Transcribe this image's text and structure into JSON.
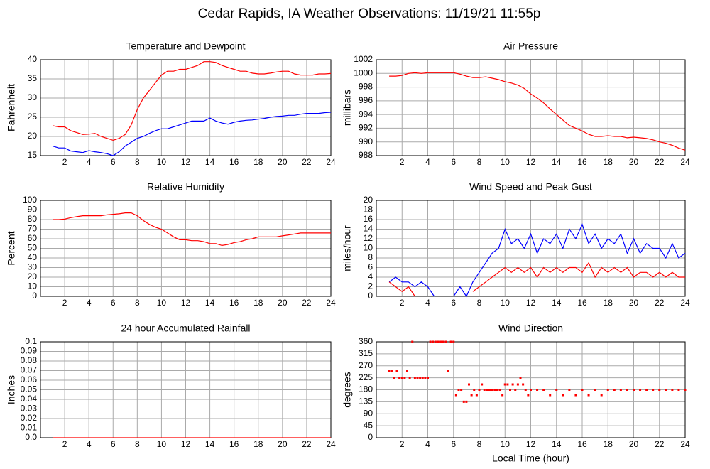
{
  "title": "Cedar Rapids, IA Weather Observations: 11/19/21 11:55p",
  "chart_data": [
    {
      "type": "line",
      "title": "Temperature and Dewpoint",
      "ylabel": "Fahrenheit",
      "grid": true,
      "xlim": [
        0,
        24
      ],
      "xticks": [
        2,
        4,
        6,
        8,
        10,
        12,
        14,
        16,
        18,
        20,
        22,
        24
      ],
      "ylim": [
        15,
        40
      ],
      "yticks": [
        15,
        20,
        25,
        30,
        35,
        40
      ],
      "x": [
        1,
        1.5,
        2,
        2.5,
        3,
        3.5,
        4,
        4.5,
        5,
        5.5,
        6,
        6.5,
        7,
        7.5,
        8,
        8.5,
        9,
        9.5,
        10,
        10.5,
        11,
        11.5,
        12,
        12.5,
        13,
        13.5,
        14,
        14.5,
        15,
        15.5,
        16,
        16.5,
        17,
        17.5,
        18,
        18.5,
        19,
        19.5,
        20,
        20.5,
        21,
        21.5,
        22,
        22.5,
        23,
        23.5,
        24
      ],
      "series": [
        {
          "color": "#ff0000",
          "values": [
            22.8,
            22.5,
            22.5,
            21.5,
            21,
            20.5,
            20.6,
            20.8,
            20,
            19.5,
            19,
            19.5,
            20.5,
            23,
            27,
            30,
            32,
            34,
            36,
            37,
            37,
            37.5,
            37.5,
            38,
            38.5,
            39.5,
            39.5,
            39.3,
            38.5,
            38,
            37.5,
            37,
            37,
            36.5,
            36.3,
            36.3,
            36.5,
            36.8,
            37,
            37,
            36.3,
            36,
            36,
            36,
            36.3,
            36.3,
            36.4
          ]
        },
        {
          "color": "#0000ff",
          "values": [
            17.5,
            17,
            17,
            16.2,
            16,
            15.8,
            16.3,
            16,
            15.8,
            15.5,
            15,
            16,
            17.5,
            18.5,
            19.5,
            20,
            20.8,
            21.5,
            22,
            22,
            22.5,
            23,
            23.5,
            24,
            24,
            24,
            24.8,
            24,
            23.5,
            23.2,
            23.7,
            24,
            24.2,
            24.3,
            24.5,
            24.7,
            25,
            25.2,
            25.3,
            25.5,
            25.5,
            25.8,
            26,
            26,
            26,
            26.2,
            26.3
          ]
        }
      ]
    },
    {
      "type": "line",
      "title": "Air Pressure",
      "ylabel": "millibars",
      "grid": true,
      "xlim": [
        0,
        24
      ],
      "xticks": [
        2,
        4,
        6,
        8,
        10,
        12,
        14,
        16,
        18,
        20,
        22,
        24
      ],
      "ylim": [
        988,
        1002
      ],
      "yticks": [
        988,
        990,
        992,
        994,
        996,
        998,
        1000,
        1002
      ],
      "x": [
        1,
        1.5,
        2,
        2.5,
        3,
        3.5,
        4,
        4.5,
        5,
        5.5,
        6,
        6.5,
        7,
        7.5,
        8,
        8.5,
        9,
        9.5,
        10,
        10.5,
        11,
        11.5,
        12,
        12.5,
        13,
        13.5,
        14,
        14.5,
        15,
        15.5,
        16,
        16.5,
        17,
        17.5,
        18,
        18.5,
        19,
        19.5,
        20,
        20.5,
        21,
        21.5,
        22,
        22.5,
        23,
        23.5,
        24
      ],
      "series": [
        {
          "color": "#ff0000",
          "values": [
            999.6,
            999.6,
            999.7,
            1000,
            1000.1,
            1000,
            1000.1,
            1000.1,
            1000.1,
            1000.1,
            1000.1,
            999.9,
            999.6,
            999.4,
            999.4,
            999.5,
            999.3,
            999.1,
            998.8,
            998.6,
            998.3,
            997.8,
            997,
            996.4,
            995.7,
            994.8,
            994,
            993.2,
            992.4,
            992,
            991.6,
            991.1,
            990.8,
            990.8,
            990.9,
            990.8,
            990.8,
            990.6,
            990.7,
            990.6,
            990.5,
            990.3,
            990,
            989.8,
            989.5,
            989.1,
            988.8
          ]
        }
      ]
    },
    {
      "type": "line",
      "title": "Relative Humidity",
      "ylabel": "Percent",
      "grid": true,
      "xlim": [
        0,
        24
      ],
      "xticks": [
        2,
        4,
        6,
        8,
        10,
        12,
        14,
        16,
        18,
        20,
        22,
        24
      ],
      "ylim": [
        0,
        100
      ],
      "yticks": [
        0,
        10,
        20,
        30,
        40,
        50,
        60,
        70,
        80,
        90,
        100
      ],
      "x": [
        1,
        1.5,
        2,
        2.5,
        3,
        3.5,
        4,
        4.5,
        5,
        5.5,
        6,
        6.5,
        7,
        7.5,
        8,
        8.5,
        9,
        9.5,
        10,
        10.5,
        11,
        11.5,
        12,
        12.5,
        13,
        13.5,
        14,
        14.5,
        15,
        15.5,
        16,
        16.5,
        17,
        17.5,
        18,
        18.5,
        19,
        19.5,
        20,
        20.5,
        21,
        21.5,
        22,
        22.5,
        23,
        23.5,
        24
      ],
      "series": [
        {
          "color": "#ff0000",
          "values": [
            80,
            80,
            80.5,
            82,
            83,
            84,
            84,
            84,
            84,
            85,
            85.5,
            86,
            87,
            87,
            84,
            79,
            75,
            72,
            70,
            66,
            62,
            59,
            59,
            58,
            58,
            57,
            55,
            55,
            53,
            54,
            56,
            57,
            59,
            60,
            62,
            62,
            62,
            62,
            63,
            64,
            65,
            66,
            66,
            66,
            66,
            66,
            66
          ]
        }
      ]
    },
    {
      "type": "line",
      "title": "Wind Speed and Peak Gust",
      "ylabel": "miles/hour",
      "grid": true,
      "xlim": [
        0,
        24
      ],
      "xticks": [
        2,
        4,
        6,
        8,
        10,
        12,
        14,
        16,
        18,
        20,
        22,
        24
      ],
      "ylim": [
        0,
        20
      ],
      "yticks": [
        0,
        2,
        4,
        6,
        8,
        10,
        12,
        14,
        16,
        18,
        20
      ],
      "x": [
        1,
        1.5,
        2,
        2.5,
        3,
        3.5,
        4,
        4.5,
        5,
        5.5,
        6,
        6.5,
        7,
        7.5,
        8,
        8.5,
        9,
        9.5,
        10,
        10.5,
        11,
        11.5,
        12,
        12.5,
        13,
        13.5,
        14,
        14.5,
        15,
        15.5,
        16,
        16.5,
        17,
        17.5,
        18,
        18.5,
        19,
        19.5,
        20,
        20.5,
        21,
        21.5,
        22,
        22.5,
        23,
        23.5,
        24
      ],
      "series": [
        {
          "color": "#0000ff",
          "values": [
            3,
            4,
            3,
            3,
            2,
            3,
            2,
            0,
            null,
            null,
            0,
            2,
            0,
            3,
            5,
            7,
            9,
            10,
            14,
            11,
            12,
            10,
            13,
            9,
            12,
            11,
            13,
            10,
            14,
            12,
            15,
            11,
            13,
            10,
            12,
            11,
            13,
            9,
            12,
            9,
            11,
            10,
            10,
            8,
            11,
            8,
            9
          ]
        },
        {
          "color": "#ff0000",
          "values": [
            3,
            2,
            1,
            2,
            0,
            null,
            null,
            null,
            null,
            null,
            null,
            null,
            null,
            1,
            2,
            3,
            4,
            5,
            6,
            5,
            6,
            5,
            6,
            4,
            6,
            5,
            6,
            5,
            6,
            6,
            5,
            7,
            4,
            6,
            5,
            6,
            5,
            6,
            4,
            5,
            5,
            4,
            5,
            4,
            5,
            4,
            4
          ]
        }
      ]
    },
    {
      "type": "line",
      "title": "24 hour Accumulated Rainfall",
      "ylabel": "Inches",
      "grid": true,
      "xlim": [
        0,
        24
      ],
      "xticks": [
        2,
        4,
        6,
        8,
        10,
        12,
        14,
        16,
        18,
        20,
        22,
        24
      ],
      "ylim": [
        0,
        0.1
      ],
      "yticks": [
        {
          "value": 0,
          "label": "0.0"
        },
        0.01,
        0.02,
        0.03,
        0.04,
        0.05,
        0.06,
        0.07,
        0.08,
        0.09,
        0.1
      ],
      "x": [
        1,
        24
      ],
      "series": [
        {
          "color": "#ff0000",
          "values": [
            0,
            0
          ]
        }
      ]
    },
    {
      "type": "scatter",
      "title": "Wind Direction",
      "ylabel": "degrees",
      "xlabel": "Local Time (hour)",
      "grid": true,
      "xlim": [
        0,
        24
      ],
      "xticks": [
        2,
        4,
        6,
        8,
        10,
        12,
        14,
        16,
        18,
        20,
        22,
        24
      ],
      "ylim": [
        0,
        360
      ],
      "yticks": [
        0,
        45,
        90,
        135,
        180,
        225,
        270,
        315,
        360
      ],
      "x": [
        1,
        1.2,
        1.4,
        1.6,
        1.8,
        2,
        2.2,
        2.4,
        2.6,
        2.8,
        3,
        3.2,
        3.4,
        3.6,
        3.8,
        4,
        4.2,
        4.4,
        4.6,
        4.8,
        5,
        5.2,
        5.4,
        5.6,
        5.8,
        6,
        6.2,
        6.4,
        6.6,
        6.8,
        7,
        7.2,
        7.4,
        7.6,
        7.8,
        8,
        8.2,
        8.4,
        8.6,
        8.8,
        9,
        9.2,
        9.4,
        9.6,
        9.8,
        10,
        10.2,
        10.4,
        10.6,
        10.8,
        11,
        11.2,
        11.4,
        11.6,
        11.8,
        12,
        12.5,
        13,
        13.5,
        14,
        14.5,
        15,
        15.5,
        16,
        16.5,
        17,
        17.5,
        18,
        18.5,
        19,
        19.5,
        20,
        20.5,
        21,
        21.5,
        22,
        22.5,
        23,
        23.5,
        24
      ],
      "series": [
        {
          "color": "#ff0000",
          "values": [
            250,
            250,
            225,
            250,
            225,
            225,
            225,
            250,
            225,
            360,
            225,
            225,
            225,
            225,
            225,
            225,
            360,
            360,
            360,
            360,
            360,
            360,
            360,
            250,
            360,
            360,
            160,
            180,
            180,
            135,
            135,
            200,
            160,
            180,
            160,
            180,
            200,
            180,
            180,
            180,
            180,
            180,
            180,
            180,
            160,
            200,
            200,
            180,
            200,
            180,
            200,
            225,
            200,
            180,
            160,
            180,
            180,
            180,
            160,
            180,
            160,
            180,
            160,
            180,
            160,
            180,
            160,
            180,
            180,
            180,
            180,
            180,
            180,
            180,
            180,
            180,
            180,
            180,
            180,
            180
          ]
        }
      ]
    }
  ]
}
